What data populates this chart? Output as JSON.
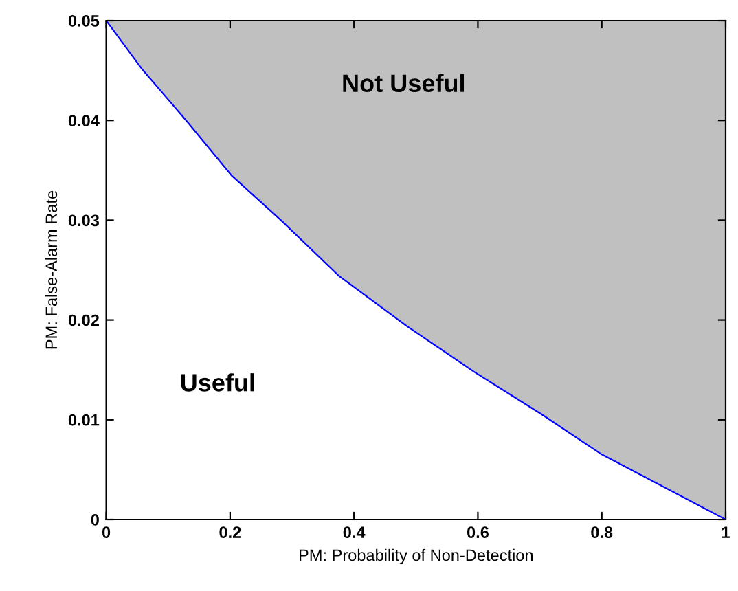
{
  "chart_data": {
    "type": "line",
    "xlabel": "PM: Probability of Non-Detection",
    "ylabel": "PM: False-Alarm Rate",
    "x": [
      0,
      0.057,
      0.129,
      0.202,
      0.282,
      0.376,
      0.485,
      0.594,
      0.704,
      0.798,
      1
    ],
    "series": [
      {
        "color": "#0000ff",
        "values": [
          0.05,
          0.0452,
          0.04,
          0.0345,
          0.03,
          0.0244,
          0.0194,
          0.0148,
          0.0105,
          0.0066,
          0
        ]
      }
    ],
    "xlim": [
      0,
      1
    ],
    "ylim": [
      0,
      0.05
    ],
    "xticks": [
      0,
      0.2,
      0.4,
      0.6,
      0.8,
      1
    ],
    "yticks": [
      0,
      0.01,
      0.02,
      0.03,
      0.04,
      0.05
    ],
    "grid": false,
    "annotations": [
      "Not Useful",
      "Useful"
    ]
  }
}
